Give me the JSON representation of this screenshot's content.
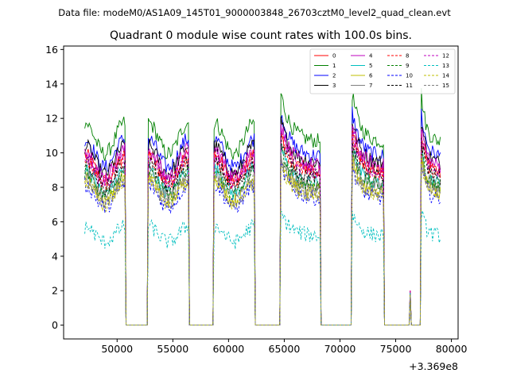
{
  "chart_data": {
    "type": "line",
    "suptitle": "Data file: modeM0/AS1A09_145T01_9000003848_26703cztM0_level2_quad_clean.evt",
    "title": "Quadrant 0 module wise count rates with 100.0s bins.",
    "xlabel": "",
    "ylabel": "",
    "x_offset_label": "+3.369e8",
    "xlim": [
      45200,
      80600
    ],
    "ylim": [
      -0.8,
      16.2
    ],
    "xticks": [
      50000,
      55000,
      60000,
      65000,
      70000,
      75000,
      80000
    ],
    "xtick_labels": [
      "50000",
      "55000",
      "60000",
      "65000",
      "70000",
      "75000",
      "80000"
    ],
    "yticks": [
      0,
      2,
      4,
      6,
      8,
      10,
      12,
      14,
      16
    ],
    "ytick_labels": [
      "0",
      "2",
      "4",
      "6",
      "8",
      "10",
      "12",
      "14",
      "16"
    ],
    "legend": {
      "placement": "top-right",
      "columns": 4,
      "entries": [
        "0",
        "1",
        "2",
        "3",
        "4",
        "5",
        "6",
        "7",
        "8",
        "9",
        "10",
        "11",
        "12",
        "13",
        "14",
        "15"
      ]
    },
    "orbit_segments": [
      {
        "start": 47100,
        "end": 50700,
        "kind": "normal"
      },
      {
        "start": 52800,
        "end": 56400,
        "kind": "normal"
      },
      {
        "start": 58700,
        "end": 62300,
        "kind": "normal"
      },
      {
        "start": 64700,
        "end": 68200,
        "kind": "decay"
      },
      {
        "start": 71100,
        "end": 73900,
        "kind": "decay"
      },
      {
        "start": 77300,
        "end": 79000,
        "kind": "decay"
      }
    ],
    "gap_spike": {
      "x": 76300,
      "value": 2.0
    },
    "gap_level": 0.0,
    "series": [
      {
        "name": "0",
        "color": "#ff0000",
        "dash": "solid",
        "mean_rate": 9.5
      },
      {
        "name": "1",
        "color": "#008000",
        "dash": "solid",
        "mean_rate": 11.3
      },
      {
        "name": "2",
        "color": "#0000ff",
        "dash": "solid",
        "mean_rate": 10.4
      },
      {
        "name": "3",
        "color": "#000000",
        "dash": "solid",
        "mean_rate": 10.0
      },
      {
        "name": "4",
        "color": "#bf00bf",
        "dash": "solid",
        "mean_rate": 9.8
      },
      {
        "name": "5",
        "color": "#00bfbf",
        "dash": "solid",
        "mean_rate": 8.7
      },
      {
        "name": "6",
        "color": "#bfbf00",
        "dash": "solid",
        "mean_rate": 8.2
      },
      {
        "name": "7",
        "color": "#808080",
        "dash": "solid",
        "mean_rate": 8.5
      },
      {
        "name": "8",
        "color": "#ff0000",
        "dash": "dashed",
        "mean_rate": 9.3
      },
      {
        "name": "9",
        "color": "#008000",
        "dash": "dashed",
        "mean_rate": 8.6
      },
      {
        "name": "10",
        "color": "#0000ff",
        "dash": "dashed",
        "mean_rate": 7.8
      },
      {
        "name": "11",
        "color": "#000000",
        "dash": "dashed",
        "mean_rate": 9.1
      },
      {
        "name": "12",
        "color": "#bf00bf",
        "dash": "dashed",
        "mean_rate": 9.4
      },
      {
        "name": "13",
        "color": "#00bfbf",
        "dash": "dashed",
        "mean_rate": 5.5
      },
      {
        "name": "14",
        "color": "#bfbf00",
        "dash": "dashed",
        "mean_rate": 8.0
      },
      {
        "name": "15",
        "color": "#808080",
        "dash": "dashed",
        "mean_rate": 8.1
      }
    ]
  }
}
